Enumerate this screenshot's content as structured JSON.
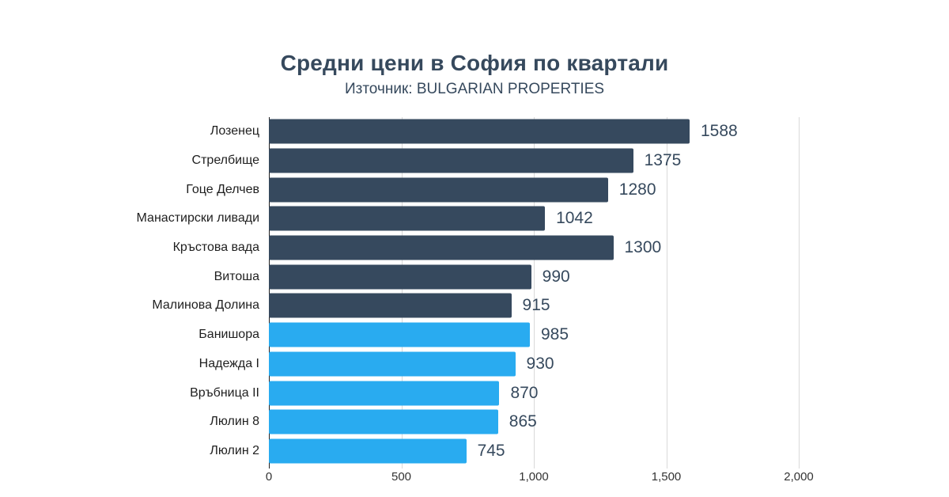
{
  "header": {
    "title": "Средни цени в София по квартали",
    "subtitle": "Източник: BULGARIAN PROPERTIES"
  },
  "chart_data": {
    "type": "bar",
    "orientation": "horizontal",
    "title": "Средни цени в София по квартали",
    "subtitle": "Източник: BULGARIAN PROPERTIES",
    "xlabel": "",
    "ylabel": "",
    "xlim": [
      0,
      2000
    ],
    "grid": true,
    "legend": "none",
    "xticks": [
      {
        "value": 0,
        "label": "0"
      },
      {
        "value": 500,
        "label": "500"
      },
      {
        "value": 1000,
        "label": "1,000"
      },
      {
        "value": 1500,
        "label": "1,500"
      },
      {
        "value": 2000,
        "label": "2,000"
      }
    ],
    "colors": {
      "dark": "#36495e",
      "light": "#29abf0"
    },
    "categories": [
      "Лозенец",
      "Стрелбище",
      "Гоце Делчев",
      "Манастирски ливади",
      "Кръстова вада",
      "Витоша",
      "Малинова Долина",
      "Банишора",
      "Надежда I",
      "Връбница II",
      "Люлин 8",
      "Люлин 2"
    ],
    "values": [
      1588,
      1375,
      1280,
      1042,
      1300,
      990,
      915,
      985,
      930,
      870,
      865,
      745
    ],
    "bars": [
      {
        "label": "Лозенец",
        "value": 1588,
        "color": "dark"
      },
      {
        "label": "Стрелбище",
        "value": 1375,
        "color": "dark"
      },
      {
        "label": "Гоце Делчев",
        "value": 1280,
        "color": "dark"
      },
      {
        "label": "Манастирски ливади",
        "value": 1042,
        "color": "dark"
      },
      {
        "label": "Кръстова вада",
        "value": 1300,
        "color": "dark"
      },
      {
        "label": "Витоша",
        "value": 990,
        "color": "dark"
      },
      {
        "label": "Малинова Долина",
        "value": 915,
        "color": "dark"
      },
      {
        "label": "Банишора",
        "value": 985,
        "color": "light"
      },
      {
        "label": "Надежда I",
        "value": 930,
        "color": "light"
      },
      {
        "label": "Връбница II",
        "value": 870,
        "color": "light"
      },
      {
        "label": "Люлин 8",
        "value": 865,
        "color": "light"
      },
      {
        "label": "Люлин 2",
        "value": 745,
        "color": "light"
      }
    ]
  }
}
